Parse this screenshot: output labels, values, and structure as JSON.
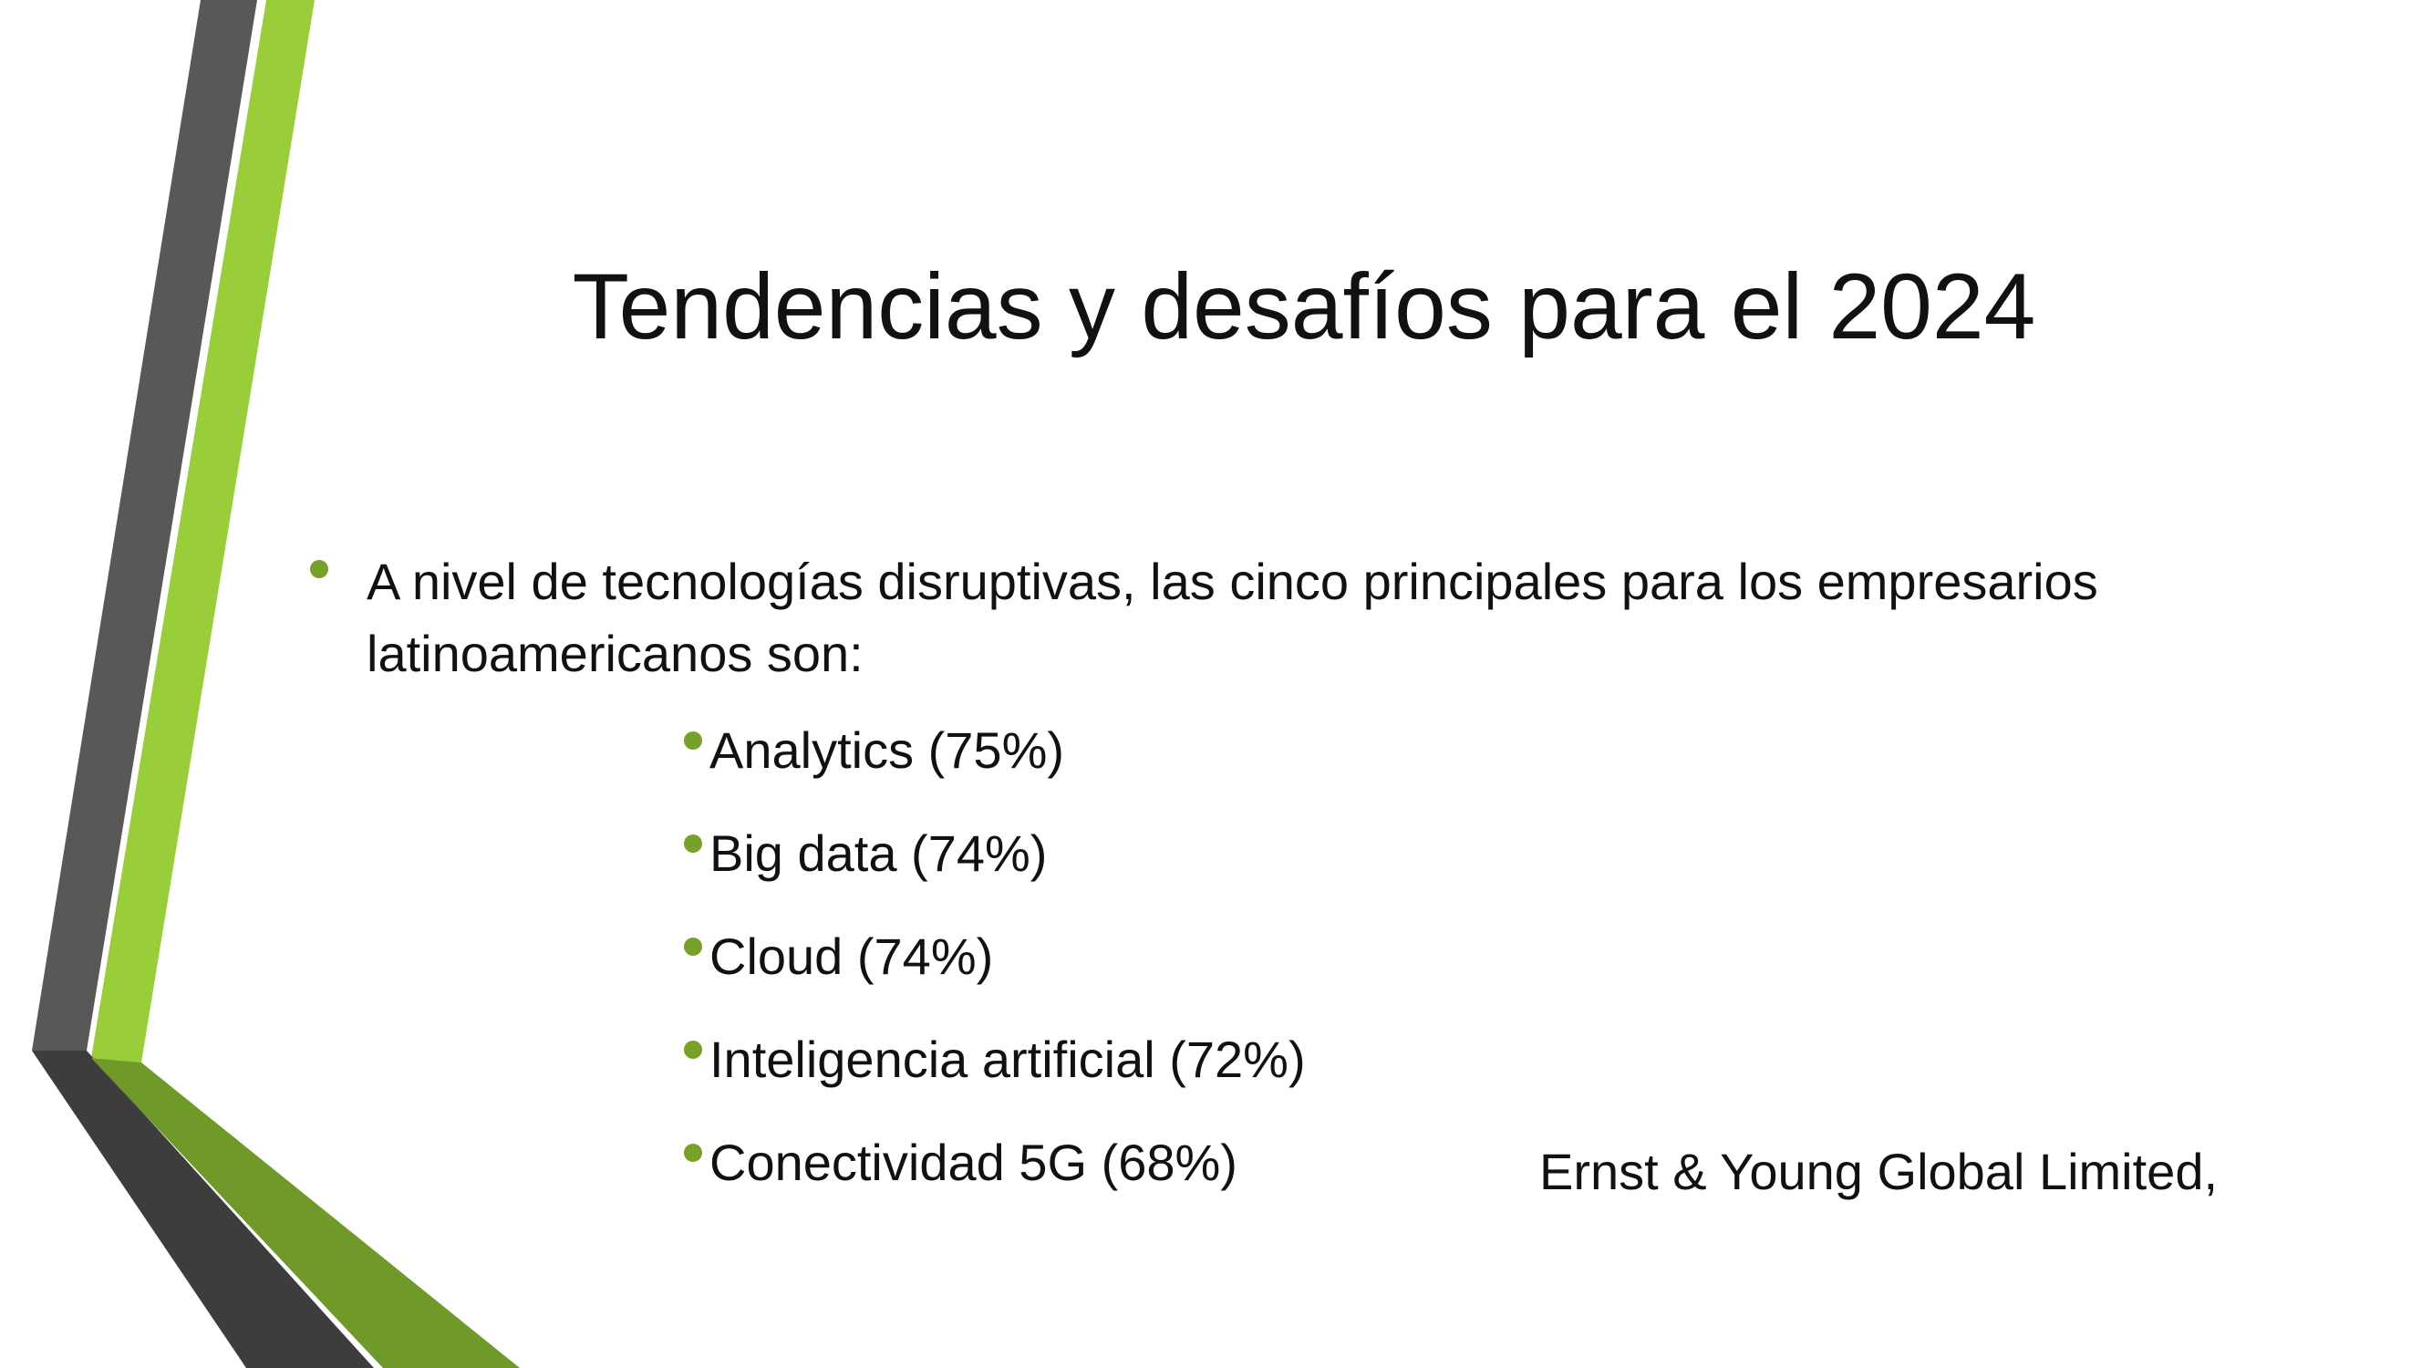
{
  "slide": {
    "title": "Tendencias y desafíos para el 2024",
    "intro": "A nivel de tecnologías disruptivas, las cinco principales para los empresarios latinoamericanos son:",
    "technologies": [
      "Analytics (75%)",
      "Big data (74%)",
      "Cloud (74%)",
      "Inteligencia artificial (72%)",
      "Conectividad 5G (68%)"
    ],
    "source": "Ernst & Young Global Limited,"
  },
  "colors": {
    "accent_green": "#9acd3a",
    "dark_green": "#6f9a2a",
    "dark_gray": "#555555",
    "darker_gray": "#3d3d3d",
    "bullet_green": "#76a22a"
  }
}
